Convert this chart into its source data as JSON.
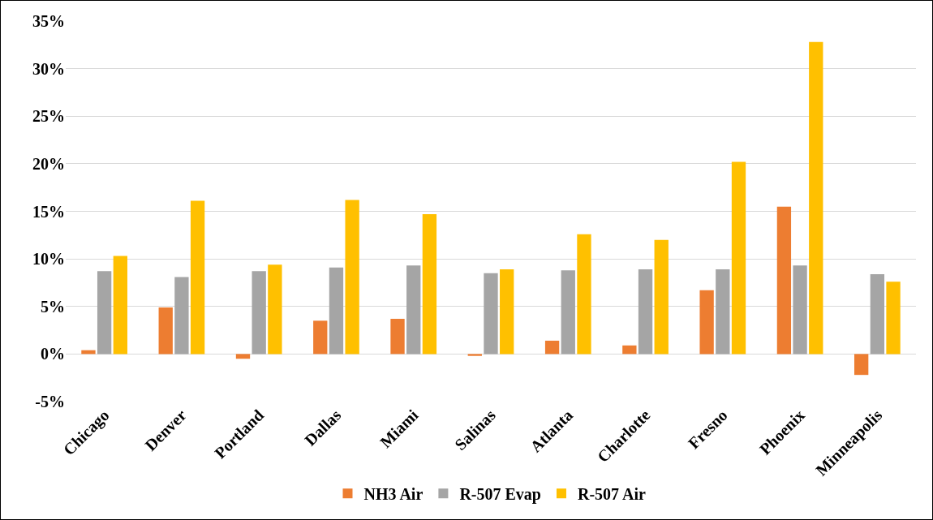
{
  "chart_data": {
    "type": "bar",
    "categories": [
      "Chicago",
      "Denver",
      "Portland",
      "Dallas",
      "Miami",
      "Salinas",
      "Atlanta",
      "Charlotte",
      "Fresno",
      "Phoenix",
      "Minneapolis"
    ],
    "series": [
      {
        "name": "NH3 Air",
        "color": "#ed7d31",
        "values": [
          0.4,
          4.9,
          -0.5,
          3.5,
          3.7,
          -0.2,
          1.4,
          0.9,
          6.7,
          15.5,
          -2.2
        ]
      },
      {
        "name": "R-507 Evap",
        "color": "#a5a5a5",
        "values": [
          8.7,
          8.1,
          8.7,
          9.1,
          9.3,
          8.5,
          8.8,
          8.9,
          8.9,
          9.3,
          8.4
        ]
      },
      {
        "name": "R-507 Air",
        "color": "#ffc000",
        "values": [
          10.3,
          16.1,
          9.4,
          16.2,
          14.7,
          8.9,
          12.6,
          12.0,
          20.2,
          32.8,
          7.6
        ]
      }
    ],
    "ylim": [
      -5,
      35
    ],
    "yticks": [
      {
        "value": -5,
        "label": "-5%"
      },
      {
        "value": 0,
        "label": "0%"
      },
      {
        "value": 5,
        "label": "5%"
      },
      {
        "value": 10,
        "label": "10%"
      },
      {
        "value": 15,
        "label": "15%"
      },
      {
        "value": 20,
        "label": "20%"
      },
      {
        "value": 25,
        "label": "25%"
      },
      {
        "value": 30,
        "label": "30%"
      },
      {
        "value": 35,
        "label": "35%"
      }
    ],
    "grid": "y",
    "legend": "bottom"
  }
}
